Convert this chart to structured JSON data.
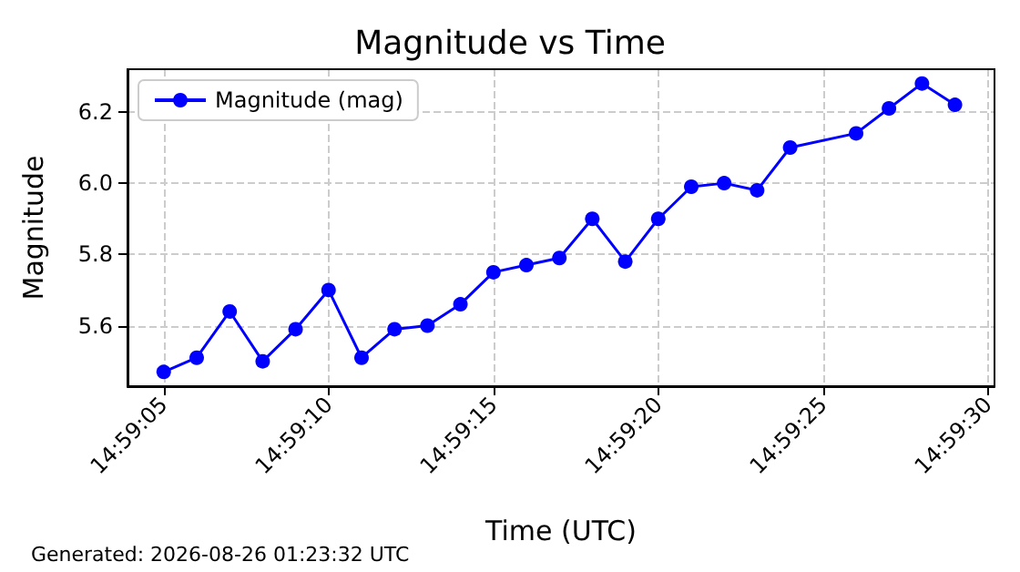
{
  "chart_data": {
    "type": "line",
    "title": "Magnitude vs Time",
    "xlabel": "Time (UTC)",
    "ylabel": "Magnitude",
    "annotations": [
      "Generated: 2026-08-26 01:23:32 UTC"
    ],
    "x": [
      14.984722,
      14.985,
      14.985278,
      14.985556,
      14.985833,
      14.986111,
      14.986389,
      14.986667,
      14.986944,
      14.987222,
      14.9875,
      14.987778,
      14.988056,
      14.988333,
      14.988611,
      14.988889,
      14.989167,
      14.989444,
      14.989722,
      14.99,
      14.990556,
      14.990833,
      14.991111,
      14.991389
    ],
    "series": [
      {
        "name": "Magnitude (mag)",
        "color": "#0000ff",
        "values": [
          5.47,
          5.51,
          5.64,
          5.5,
          5.59,
          5.7,
          5.51,
          5.59,
          5.6,
          5.66,
          5.75,
          5.77,
          5.79,
          5.9,
          5.78,
          5.9,
          5.99,
          6.0,
          5.98,
          6.1,
          6.14,
          6.21,
          6.28,
          6.22
        ]
      }
    ],
    "xlim": [
      14.984417,
      14.991722
    ],
    "xticks": [
      {
        "value": 14.984722,
        "label": "14:59:05"
      },
      {
        "value": 14.986111,
        "label": "14:59:10"
      },
      {
        "value": 14.9875,
        "label": "14:59:15"
      },
      {
        "value": 14.988889,
        "label": "14:59:20"
      },
      {
        "value": 14.990278,
        "label": "14:59:25"
      },
      {
        "value": 14.991667,
        "label": "14:59:30"
      }
    ],
    "ylim": [
      5.43,
      6.32
    ],
    "yticks": [
      5.6,
      5.8,
      {
        "value": 6,
        "label": "6.0"
      },
      6.2
    ],
    "grid": true,
    "legend": "top left",
    "marker": "circle",
    "line_style": "solid"
  }
}
